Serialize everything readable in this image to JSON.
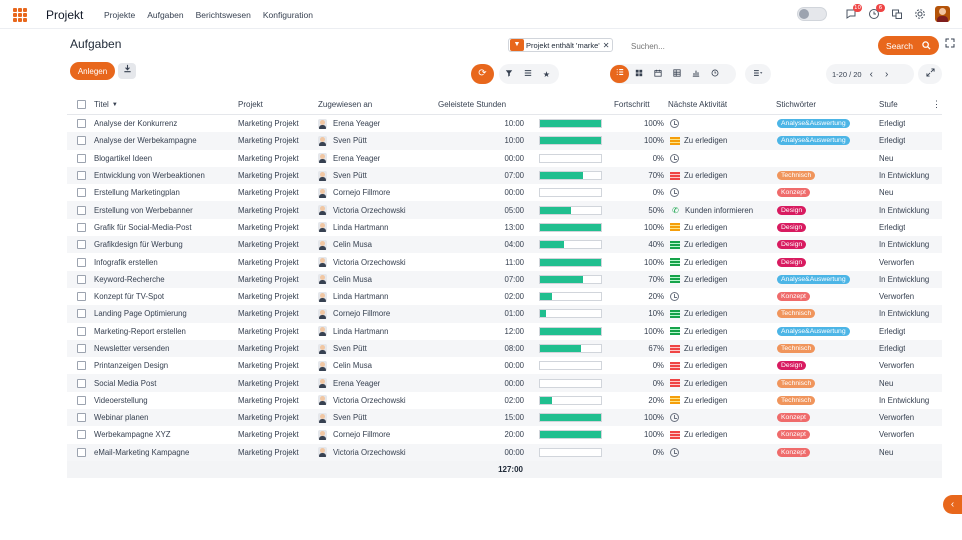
{
  "app": {
    "title": "Projekt",
    "menu": [
      "Projekte",
      "Aufgaben",
      "Berichtswesen",
      "Konfiguration"
    ]
  },
  "topbar": {
    "chat_badge": "10",
    "activity_badge": "6"
  },
  "page": {
    "title": "Aufgaben"
  },
  "search": {
    "facet_text": "Projekt enthält 'marke'",
    "placeholder": "Suchen...",
    "button_label": "Search"
  },
  "actions": {
    "new_label": "Anlegen"
  },
  "pager": {
    "range": "1-20 / 20"
  },
  "table": {
    "headers": {
      "title": "Titel",
      "project": "Projekt",
      "assignee": "Zugewiesen an",
      "hours": "Geleistete Stunden",
      "progress": "Fortschritt",
      "activity": "Nächste Aktivität",
      "tags": "Stichwörter",
      "stage": "Stufe"
    },
    "rows": [
      {
        "title": "Analyse der Konkurrenz",
        "project": "Marketing Projekt",
        "assignee": "Erena Yeager",
        "hours": "10:00",
        "progress": 100,
        "progress_label": "100%",
        "activity_type": "clock",
        "activity": "",
        "tag": "Analyse&Auswertung",
        "tag_color": "#4cb5e6",
        "stage": "Erledigt"
      },
      {
        "title": "Analyse der Werbekampagne",
        "project": "Marketing Projekt",
        "assignee": "Sven Pütt",
        "hours": "10:00",
        "progress": 100,
        "progress_label": "100%",
        "activity_type": "flag-yellow",
        "activity": "Zu erledigen",
        "tag": "Analyse&Auswertung",
        "tag_color": "#4cb5e6",
        "stage": "Erledigt"
      },
      {
        "title": "Blogartikel Ideen",
        "project": "Marketing Projekt",
        "assignee": "Erena Yeager",
        "hours": "00:00",
        "progress": 0,
        "progress_label": "0%",
        "activity_type": "clock",
        "activity": "",
        "tag": "",
        "tag_color": "",
        "stage": "Neu"
      },
      {
        "title": "Entwicklung von Werbeaktionen",
        "project": "Marketing Projekt",
        "assignee": "Sven Pütt",
        "hours": "07:00",
        "progress": 70,
        "progress_label": "70%",
        "activity_type": "flag-red",
        "activity": "Zu erledigen",
        "tag": "Technisch",
        "tag_color": "#f0955c",
        "stage": "In Entwicklung"
      },
      {
        "title": "Erstellung Marketingplan",
        "project": "Marketing Projekt",
        "assignee": "Cornejo Fillmore",
        "hours": "00:00",
        "progress": 0,
        "progress_label": "0%",
        "activity_type": "clock",
        "activity": "",
        "tag": "Konzept",
        "tag_color": "#ef6b6b",
        "stage": "Neu"
      },
      {
        "title": "Erstellung von Werbebanner",
        "project": "Marketing Projekt",
        "assignee": "Victoria Orzechowski",
        "hours": "05:00",
        "progress": 50,
        "progress_label": "50%",
        "activity_type": "phone",
        "activity": "Kunden informieren",
        "tag": "Design",
        "tag_color": "#d81b60",
        "stage": "In Entwicklung"
      },
      {
        "title": "Grafik für Social-Media-Post",
        "project": "Marketing Projekt",
        "assignee": "Linda Hartmann",
        "hours": "13:00",
        "progress": 100,
        "progress_label": "100%",
        "activity_type": "flag-yellow",
        "activity": "Zu erledigen",
        "tag": "Design",
        "tag_color": "#d81b60",
        "stage": "Erledigt"
      },
      {
        "title": "Grafikdesign für Werbung",
        "project": "Marketing Projekt",
        "assignee": "Celin Musa",
        "hours": "04:00",
        "progress": 40,
        "progress_label": "40%",
        "activity_type": "flag-green",
        "activity": "Zu erledigen",
        "tag": "Design",
        "tag_color": "#d81b60",
        "stage": "In Entwicklung"
      },
      {
        "title": "Infografik erstellen",
        "project": "Marketing Projekt",
        "assignee": "Victoria Orzechowski",
        "hours": "11:00",
        "progress": 100,
        "progress_label": "100%",
        "activity_type": "flag-green",
        "activity": "Zu erledigen",
        "tag": "Design",
        "tag_color": "#d81b60",
        "stage": "Verworfen"
      },
      {
        "title": "Keyword-Recherche",
        "project": "Marketing Projekt",
        "assignee": "Celin Musa",
        "hours": "07:00",
        "progress": 70,
        "progress_label": "70%",
        "activity_type": "flag-green",
        "activity": "Zu erledigen",
        "tag": "Analyse&Auswertung",
        "tag_color": "#4cb5e6",
        "stage": "In Entwicklung"
      },
      {
        "title": "Konzept für TV-Spot",
        "project": "Marketing Projekt",
        "assignee": "Linda Hartmann",
        "hours": "02:00",
        "progress": 20,
        "progress_label": "20%",
        "activity_type": "clock",
        "activity": "",
        "tag": "Konzept",
        "tag_color": "#ef6b6b",
        "stage": "Verworfen"
      },
      {
        "title": "Landing Page Optimierung",
        "project": "Marketing Projekt",
        "assignee": "Cornejo Fillmore",
        "hours": "01:00",
        "progress": 10,
        "progress_label": "10%",
        "activity_type": "flag-green",
        "activity": "Zu erledigen",
        "tag": "Technisch",
        "tag_color": "#f0955c",
        "stage": "In Entwicklung"
      },
      {
        "title": "Marketing-Report erstellen",
        "project": "Marketing Projekt",
        "assignee": "Linda Hartmann",
        "hours": "12:00",
        "progress": 100,
        "progress_label": "100%",
        "activity_type": "flag-green",
        "activity": "Zu erledigen",
        "tag": "Analyse&Auswertung",
        "tag_color": "#4cb5e6",
        "stage": "Erledigt"
      },
      {
        "title": "Newsletter versenden",
        "project": "Marketing Projekt",
        "assignee": "Sven Pütt",
        "hours": "08:00",
        "progress": 67,
        "progress_label": "67%",
        "activity_type": "flag-red",
        "activity": "Zu erledigen",
        "tag": "Technisch",
        "tag_color": "#f0955c",
        "stage": "Erledigt"
      },
      {
        "title": "Printanzeigen Design",
        "project": "Marketing Projekt",
        "assignee": "Celin Musa",
        "hours": "00:00",
        "progress": 0,
        "progress_label": "0%",
        "activity_type": "flag-red",
        "activity": "Zu erledigen",
        "tag": "Design",
        "tag_color": "#d81b60",
        "stage": "Verworfen"
      },
      {
        "title": "Social Media Post",
        "project": "Marketing Projekt",
        "assignee": "Erena Yeager",
        "hours": "00:00",
        "progress": 0,
        "progress_label": "0%",
        "activity_type": "flag-red",
        "activity": "Zu erledigen",
        "tag": "Technisch",
        "tag_color": "#f0955c",
        "stage": "Neu"
      },
      {
        "title": "Videoerstellung",
        "project": "Marketing Projekt",
        "assignee": "Victoria Orzechowski",
        "hours": "02:00",
        "progress": 20,
        "progress_label": "20%",
        "activity_type": "flag-yellow",
        "activity": "Zu erledigen",
        "tag": "Technisch",
        "tag_color": "#f0955c",
        "stage": "In Entwicklung"
      },
      {
        "title": "Webinar planen",
        "project": "Marketing Projekt",
        "assignee": "Sven Pütt",
        "hours": "15:00",
        "progress": 100,
        "progress_label": "100%",
        "activity_type": "clock",
        "activity": "",
        "tag": "Konzept",
        "tag_color": "#ef6b6b",
        "stage": "Verworfen"
      },
      {
        "title": "Werbekampagne XYZ",
        "project": "Marketing Projekt",
        "assignee": "Cornejo Fillmore",
        "hours": "20:00",
        "progress": 100,
        "progress_label": "100%",
        "activity_type": "flag-red",
        "activity": "Zu erledigen",
        "tag": "Konzept",
        "tag_color": "#ef6b6b",
        "stage": "Verworfen"
      },
      {
        "title": "eMail-Marketing Kampagne",
        "project": "Marketing Projekt",
        "assignee": "Victoria Orzechowski",
        "hours": "00:00",
        "progress": 0,
        "progress_label": "0%",
        "activity_type": "clock",
        "activity": "",
        "tag": "Konzept",
        "tag_color": "#ef6b6b",
        "stage": "Neu"
      }
    ],
    "total_hours": "127:00"
  },
  "colors": {
    "accent": "#e8671c",
    "progress": "#20bf8f"
  }
}
